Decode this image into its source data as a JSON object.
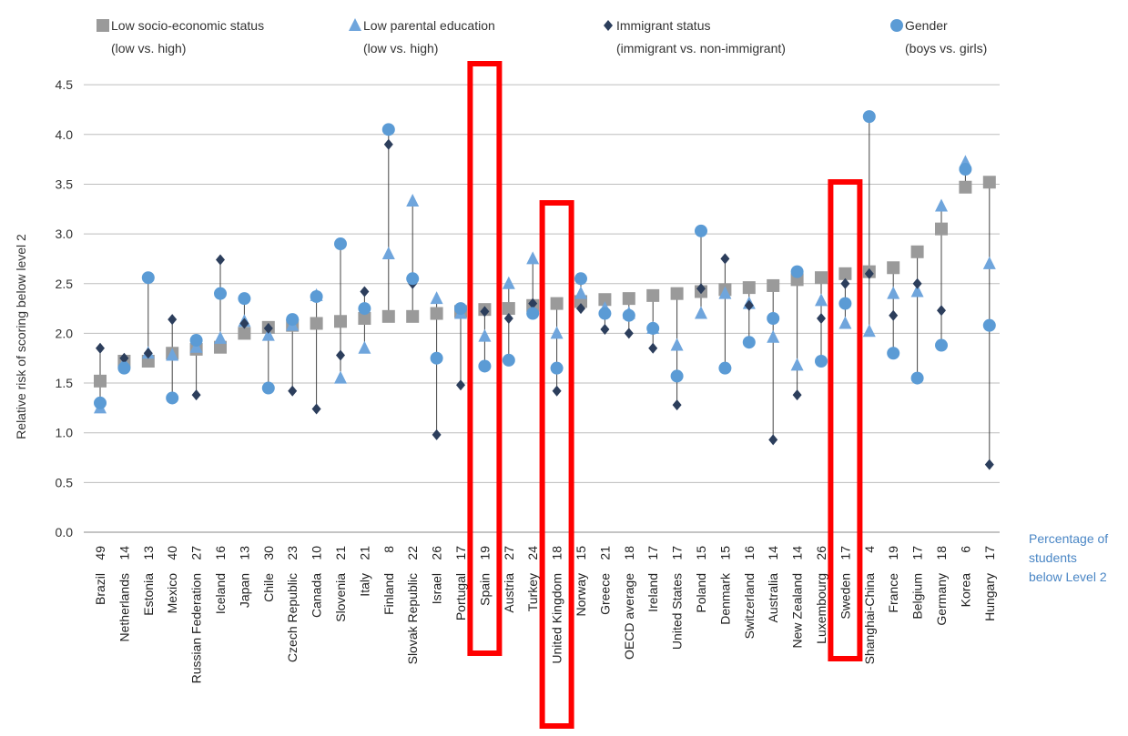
{
  "chart_data": {
    "type": "scatter",
    "ylabel": "Relative risk of scoring below level 2",
    "ylim": [
      0,
      4.5
    ],
    "yticks": [
      "0.0",
      "0.5",
      "1.0",
      "1.5",
      "2.0",
      "2.5",
      "3.0",
      "3.5",
      "4.0",
      "4.5"
    ],
    "grid": true,
    "legend_position": "top",
    "categories_note": "Percentage of students below Level 2",
    "categories_note_lines": [
      "Percentage of",
      "students",
      "below Level 2"
    ],
    "categories": [
      {
        "name": "Brazil",
        "pct": "49"
      },
      {
        "name": "Netherlands",
        "pct": "14"
      },
      {
        "name": "Estonia",
        "pct": "13"
      },
      {
        "name": "Mexico",
        "pct": "40"
      },
      {
        "name": "Russian Federation",
        "pct": "27"
      },
      {
        "name": "Iceland",
        "pct": "16"
      },
      {
        "name": "Japan",
        "pct": "13"
      },
      {
        "name": "Chile",
        "pct": "30"
      },
      {
        "name": "Czech Republic",
        "pct": "23"
      },
      {
        "name": "Canada",
        "pct": "10"
      },
      {
        "name": "Slovenia",
        "pct": "21"
      },
      {
        "name": "Italy",
        "pct": "21"
      },
      {
        "name": "Finland",
        "pct": "8"
      },
      {
        "name": "Slovak Republic",
        "pct": "22"
      },
      {
        "name": "Israel",
        "pct": "26"
      },
      {
        "name": "Portugal",
        "pct": "17"
      },
      {
        "name": "Spain",
        "pct": "19"
      },
      {
        "name": "Austria",
        "pct": "27"
      },
      {
        "name": "Turkey",
        "pct": "24"
      },
      {
        "name": "United Kingdom",
        "pct": "18"
      },
      {
        "name": "Norway",
        "pct": "15"
      },
      {
        "name": "Greece",
        "pct": "21"
      },
      {
        "name": "OECD average",
        "pct": "18"
      },
      {
        "name": "Ireland",
        "pct": "17"
      },
      {
        "name": "United States",
        "pct": "17"
      },
      {
        "name": "Poland",
        "pct": "15"
      },
      {
        "name": "Denmark",
        "pct": "15"
      },
      {
        "name": "Switzerland",
        "pct": "16"
      },
      {
        "name": "Australia",
        "pct": "14"
      },
      {
        "name": "New Zealand",
        "pct": "14"
      },
      {
        "name": "Luxembourg",
        "pct": "26"
      },
      {
        "name": "Sweden",
        "pct": "17"
      },
      {
        "name": "Shanghai-China",
        "pct": "4"
      },
      {
        "name": "France",
        "pct": "19"
      },
      {
        "name": "Belgium",
        "pct": "17"
      },
      {
        "name": "Germany",
        "pct": "18"
      },
      {
        "name": "Korea",
        "pct": "6"
      },
      {
        "name": "Hungary",
        "pct": "17"
      }
    ],
    "series": [
      {
        "name": "Low socio-economic status",
        "sublabel": "(low vs. high)",
        "marker": "square",
        "color": "#9a9a9a",
        "values": [
          1.52,
          1.72,
          1.72,
          1.8,
          1.84,
          1.86,
          2.0,
          2.06,
          2.08,
          2.1,
          2.12,
          2.15,
          2.17,
          2.17,
          2.2,
          2.22,
          2.24,
          2.25,
          2.28,
          2.3,
          2.32,
          2.34,
          2.35,
          2.38,
          2.4,
          2.42,
          2.44,
          2.46,
          2.48,
          2.54,
          2.56,
          2.6,
          2.62,
          2.66,
          2.82,
          3.05,
          3.47,
          3.52
        ]
      },
      {
        "name": "Low parental education",
        "sublabel": "(low vs. high)",
        "marker": "triangle",
        "color": "#6fa5dc",
        "values": [
          1.25,
          1.7,
          1.8,
          1.78,
          1.86,
          1.95,
          2.12,
          1.98,
          2.08,
          2.38,
          1.55,
          1.85,
          2.8,
          3.33,
          2.35,
          2.2,
          1.97,
          2.5,
          2.75,
          2.0,
          2.4,
          2.25,
          2.2,
          2.05,
          1.88,
          2.2,
          2.4,
          2.3,
          1.96,
          1.68,
          2.33,
          2.1,
          2.02,
          2.4,
          2.42,
          3.28,
          3.72,
          2.7
        ]
      },
      {
        "name": "Immigrant status",
        "sublabel": "(immigrant vs. non-immigrant)",
        "marker": "diamond",
        "color": "#2c3e5c",
        "values": [
          1.85,
          1.75,
          1.8,
          2.14,
          1.38,
          2.74,
          2.1,
          2.05,
          1.42,
          1.24,
          1.78,
          2.42,
          3.9,
          2.5,
          0.98,
          1.48,
          2.22,
          2.15,
          2.3,
          1.42,
          2.25,
          2.04,
          2.0,
          1.85,
          1.28,
          2.45,
          2.75,
          2.28,
          0.93,
          1.38,
          2.15,
          2.5,
          2.6,
          2.18,
          2.5,
          2.23,
          3.65,
          0.68
        ]
      },
      {
        "name": "Gender",
        "sublabel": "(boys vs. girls)",
        "marker": "circle",
        "color": "#5b9bd5",
        "values": [
          1.3,
          1.65,
          2.56,
          1.35,
          1.93,
          2.4,
          2.35,
          1.45,
          2.14,
          2.37,
          2.9,
          2.25,
          4.05,
          2.55,
          1.75,
          2.25,
          1.67,
          1.73,
          2.2,
          1.65,
          2.55,
          2.2,
          2.18,
          2.05,
          1.57,
          3.03,
          1.65,
          1.91,
          2.15,
          2.62,
          1.72,
          2.3,
          4.18,
          1.8,
          1.55,
          1.88,
          3.65,
          2.08
        ]
      }
    ],
    "highlights": [
      "Spain",
      "United Kingdom",
      "Sweden"
    ],
    "highlight_color": "#ff0000"
  }
}
